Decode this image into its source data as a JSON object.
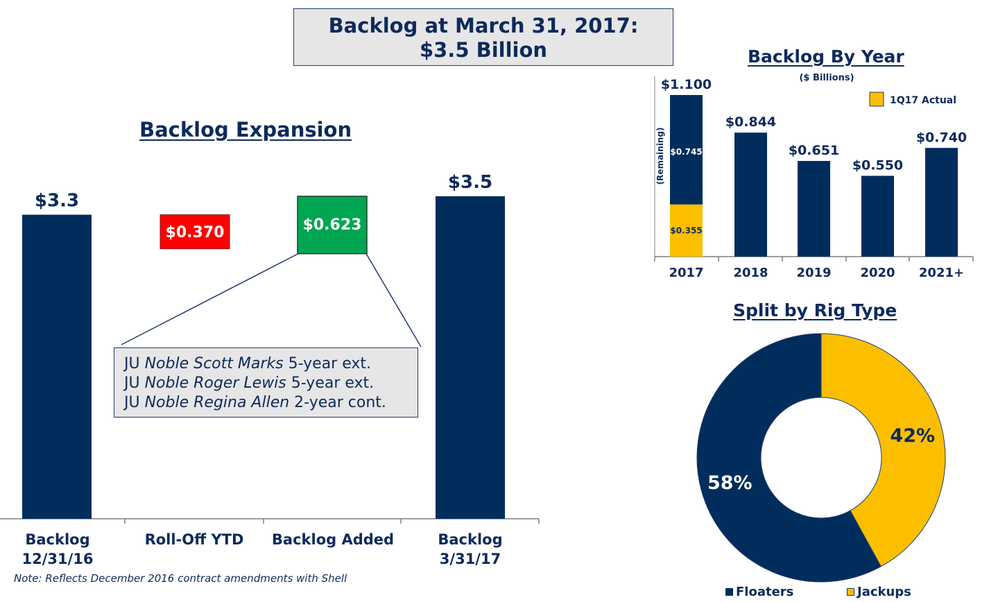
{
  "header": {
    "line1": "Backlog at March 31, 2017:",
    "line2": "$3.5 Billion"
  },
  "colors": {
    "navy": "#002d5c",
    "gold": "#fcbf00",
    "red": "#ff0000",
    "green": "#00a651",
    "text": "#0e2a5c",
    "callout_bg": "#e6e6e6"
  },
  "chart_data": [
    {
      "type": "bar",
      "variant": "waterfall",
      "title": "Backlog Expansion",
      "categories": [
        "Backlog\n12/31/16",
        "Roll-Off YTD",
        "Backlog Added",
        "Backlog\n3/31/17"
      ],
      "category_lines": [
        [
          "Backlog",
          "12/31/16"
        ],
        [
          "Roll-Off YTD"
        ],
        [
          "Backlog Added"
        ],
        [
          "Backlog",
          "3/31/17"
        ]
      ],
      "values": [
        3.3,
        -0.37,
        0.623,
        3.5
      ],
      "labels": [
        "$3.3",
        "$0.370",
        "$0.623",
        "$3.5"
      ],
      "value_units": "$ Billions",
      "callout": [
        {
          "prefix": "JU ",
          "rig": "Noble Scott Marks",
          "suffix": " 5-year ext."
        },
        {
          "prefix": "JU ",
          "rig": "Noble Roger Lewis",
          "suffix": " 5-year ext."
        },
        {
          "prefix": "JU ",
          "rig": "Noble Regina Allen",
          "suffix": " 2-year cont."
        }
      ],
      "note": "Note:  Reflects December 2016 contract amendments with Shell"
    },
    {
      "type": "bar",
      "variant": "stacked",
      "title": "Backlog By Year",
      "subtitle": "($ Billions)",
      "categories": [
        "2017",
        "2018",
        "2019",
        "2020",
        "2021+"
      ],
      "series": [
        {
          "name": "1Q17 Actual",
          "values": [
            0.355,
            0,
            0,
            0,
            0
          ],
          "labels": [
            "$0.355",
            "",
            "",
            "",
            ""
          ]
        },
        {
          "name": "",
          "values": [
            0.745,
            0.844,
            0.651,
            0.55,
            0.74
          ],
          "labels": [
            "$0.745",
            "",
            "",
            "",
            ""
          ]
        }
      ],
      "totals": [
        1.1,
        0.844,
        0.651,
        0.55,
        0.74
      ],
      "total_labels": [
        "$1.100",
        "$0.844",
        "$0.651",
        "$0.550",
        "$0.740"
      ],
      "side_label": "(Remaining)",
      "legend": "top-right"
    },
    {
      "type": "pie",
      "variant": "donut",
      "title": "Split by Rig Type",
      "categories": [
        "Floaters",
        "Jackups"
      ],
      "values": [
        58,
        42
      ],
      "labels": [
        "58%",
        "42%"
      ],
      "legend": "bottom"
    }
  ]
}
